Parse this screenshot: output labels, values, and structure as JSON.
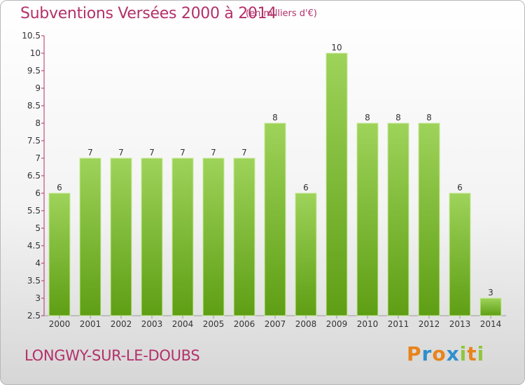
{
  "header": {
    "title": "Subventions Versées 2000 à 2014",
    "subtitle": "(en milliers d'€)"
  },
  "footer": {
    "city": "LONGWY-SUR-LE-DOUBS",
    "logo": "Proxiti"
  },
  "colors": {
    "accent": "#b3306a",
    "bar_top": "#9ed35a",
    "bar_bottom": "#5e9e14",
    "logo_letters": [
      "#e8841c",
      "#2f8fce",
      "#e8841c",
      "#2f8fce",
      "#8fc640",
      "#e8841c",
      "#8fc640"
    ]
  },
  "chart_data": {
    "type": "bar",
    "categories": [
      "2000",
      "2001",
      "2002",
      "2003",
      "2004",
      "2005",
      "2006",
      "2007",
      "2008",
      "2009",
      "2010",
      "2011",
      "2012",
      "2013",
      "2014"
    ],
    "values": [
      6,
      7,
      7,
      7,
      7,
      7,
      7,
      8,
      6,
      10,
      8,
      8,
      8,
      6,
      3
    ],
    "ylim": [
      2.5,
      10.5
    ],
    "yticks": [
      "2.5",
      "3",
      "3.5",
      "4",
      "4.5",
      "5",
      "5.5",
      "6",
      "6.5",
      "7",
      "7.5",
      "8",
      "8.5",
      "9",
      "9.5",
      "10",
      "10.5"
    ],
    "grid": false,
    "legend": "none"
  }
}
